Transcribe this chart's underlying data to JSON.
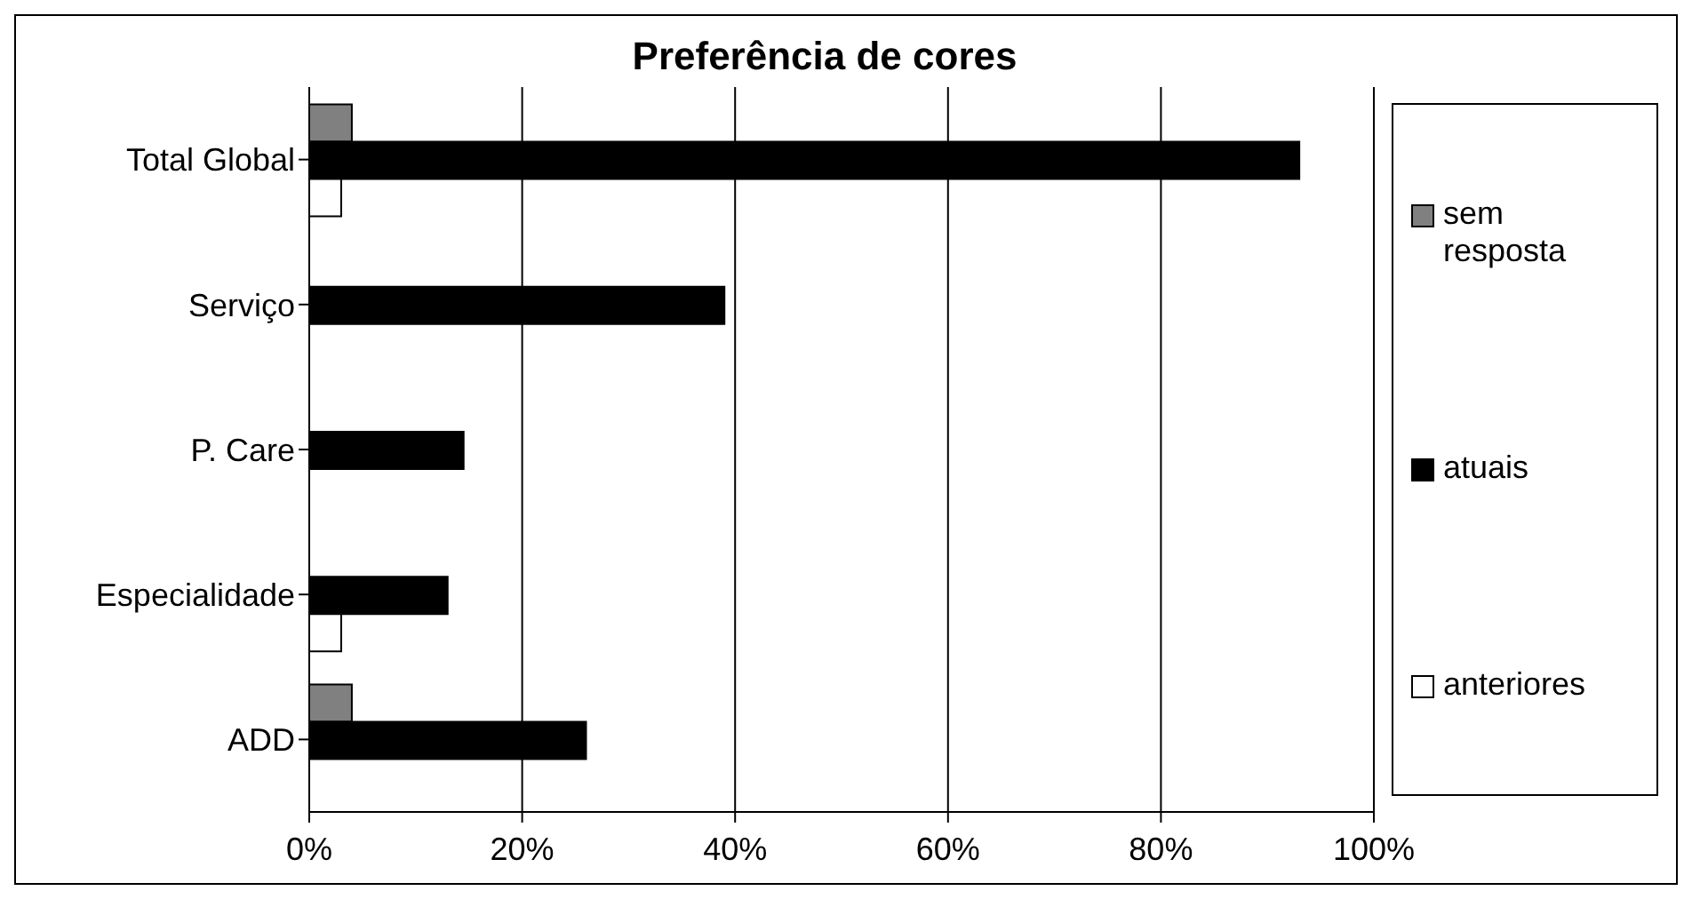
{
  "chart_data": {
    "type": "bar",
    "orientation": "horizontal",
    "title": "Preferência de cores",
    "categories": [
      "Total Global",
      "Serviço",
      "P. Care",
      "Especialidade",
      "ADD"
    ],
    "series": [
      {
        "name": "sem resposta",
        "color": "#808080",
        "values": [
          4,
          null,
          null,
          null,
          4
        ]
      },
      {
        "name": "atuais",
        "color": "#000000",
        "values": [
          93,
          39,
          14.5,
          13,
          26
        ]
      },
      {
        "name": "anteriores",
        "color": "#ffffff",
        "values": [
          3,
          null,
          null,
          3,
          null
        ]
      }
    ],
    "xlim": [
      0,
      100
    ],
    "xticks": [
      {
        "value": 0,
        "label": "0%"
      },
      {
        "value": 20,
        "label": "20%"
      },
      {
        "value": 40,
        "label": "40%"
      },
      {
        "value": 60,
        "label": "60%"
      },
      {
        "value": 80,
        "label": "80%"
      },
      {
        "value": 100,
        "label": "100%"
      }
    ],
    "grid": "x",
    "legend": "right"
  }
}
